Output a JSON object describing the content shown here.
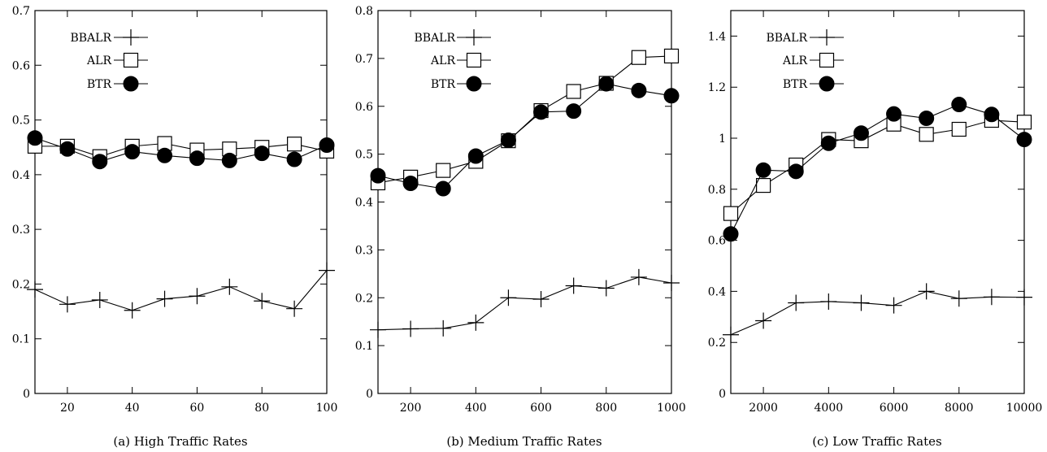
{
  "chart_data": [
    {
      "type": "line",
      "caption": "(a) High Traffic Rates",
      "xlim": [
        10,
        100
      ],
      "ylim": [
        0,
        0.7
      ],
      "xticks": [
        20,
        40,
        60,
        80,
        100
      ],
      "yticks": [
        0,
        0.1,
        0.2,
        0.3,
        0.4,
        0.5,
        0.6,
        0.7
      ],
      "xtick_labels": [
        "20",
        "40",
        "60",
        "80",
        "100"
      ],
      "ytick_labels": [
        "0",
        "0.1",
        "0.2",
        "0.3",
        "0.4",
        "0.5",
        "0.6",
        "0.7"
      ],
      "x": [
        10,
        20,
        30,
        40,
        50,
        60,
        70,
        80,
        90,
        100
      ],
      "series": [
        {
          "name": "BBALR",
          "marker": "plus",
          "values": [
            0.19,
            0.163,
            0.171,
            0.152,
            0.173,
            0.178,
            0.195,
            0.169,
            0.155,
            0.225
          ]
        },
        {
          "name": "ALR",
          "marker": "square",
          "values": [
            0.452,
            0.452,
            0.433,
            0.452,
            0.457,
            0.445,
            0.447,
            0.45,
            0.456,
            0.443
          ]
        },
        {
          "name": "BTR",
          "marker": "circle",
          "values": [
            0.467,
            0.447,
            0.424,
            0.442,
            0.435,
            0.43,
            0.426,
            0.439,
            0.428,
            0.454
          ]
        }
      ],
      "legend_position": "top-left",
      "grid": false
    },
    {
      "type": "line",
      "caption": "(b) Medium Traffic Rates",
      "xlim": [
        100,
        1000
      ],
      "ylim": [
        0,
        0.8
      ],
      "xticks": [
        200,
        400,
        600,
        800,
        1000
      ],
      "yticks": [
        0,
        0.1,
        0.2,
        0.3,
        0.4,
        0.5,
        0.6,
        0.7,
        0.8
      ],
      "xtick_labels": [
        "200",
        "400",
        "600",
        "800",
        "1000"
      ],
      "ytick_labels": [
        "0",
        "0.1",
        "0.2",
        "0.3",
        "0.4",
        "0.5",
        "0.6",
        "0.7",
        "0.8"
      ],
      "x": [
        100,
        200,
        300,
        400,
        500,
        600,
        700,
        800,
        900,
        1000
      ],
      "series": [
        {
          "name": "BBALR",
          "marker": "plus",
          "values": [
            0.133,
            0.135,
            0.136,
            0.148,
            0.2,
            0.197,
            0.225,
            0.22,
            0.243,
            0.231
          ]
        },
        {
          "name": "ALR",
          "marker": "square",
          "values": [
            0.44,
            0.452,
            0.466,
            0.485,
            0.528,
            0.591,
            0.631,
            0.648,
            0.702,
            0.705
          ]
        },
        {
          "name": "BTR",
          "marker": "circle",
          "values": [
            0.455,
            0.439,
            0.428,
            0.496,
            0.529,
            0.588,
            0.59,
            0.647,
            0.633,
            0.622
          ]
        }
      ],
      "legend_position": "top-left",
      "grid": false
    },
    {
      "type": "line",
      "caption": "(c) Low Traffic Rates",
      "xlim": [
        1000,
        10000
      ],
      "ylim": [
        0,
        1.5
      ],
      "xticks": [
        2000,
        4000,
        6000,
        8000,
        10000
      ],
      "yticks": [
        0,
        0.2,
        0.4,
        0.6,
        0.8,
        1.0,
        1.2,
        1.4
      ],
      "xtick_labels": [
        "2000",
        "4000",
        "6000",
        "8000",
        "10000"
      ],
      "ytick_labels": [
        "0",
        "0.2",
        "0.4",
        "0.6",
        "0.8",
        "1",
        "1.2",
        "1.4"
      ],
      "x": [
        1000,
        2000,
        3000,
        4000,
        5000,
        6000,
        7000,
        8000,
        9000,
        10000
      ],
      "series": [
        {
          "name": "BBALR",
          "marker": "plus",
          "values": [
            0.23,
            0.285,
            0.355,
            0.36,
            0.355,
            0.345,
            0.4,
            0.372,
            0.378,
            0.377
          ]
        },
        {
          "name": "ALR",
          "marker": "square",
          "values": [
            0.705,
            0.815,
            0.895,
            0.995,
            0.99,
            1.055,
            1.015,
            1.035,
            1.07,
            1.063
          ]
        },
        {
          "name": "BTR",
          "marker": "circle",
          "values": [
            0.625,
            0.875,
            0.87,
            0.98,
            1.02,
            1.095,
            1.078,
            1.132,
            1.093,
            0.995
          ]
        }
      ],
      "legend_position": "top-left",
      "grid": false
    }
  ]
}
